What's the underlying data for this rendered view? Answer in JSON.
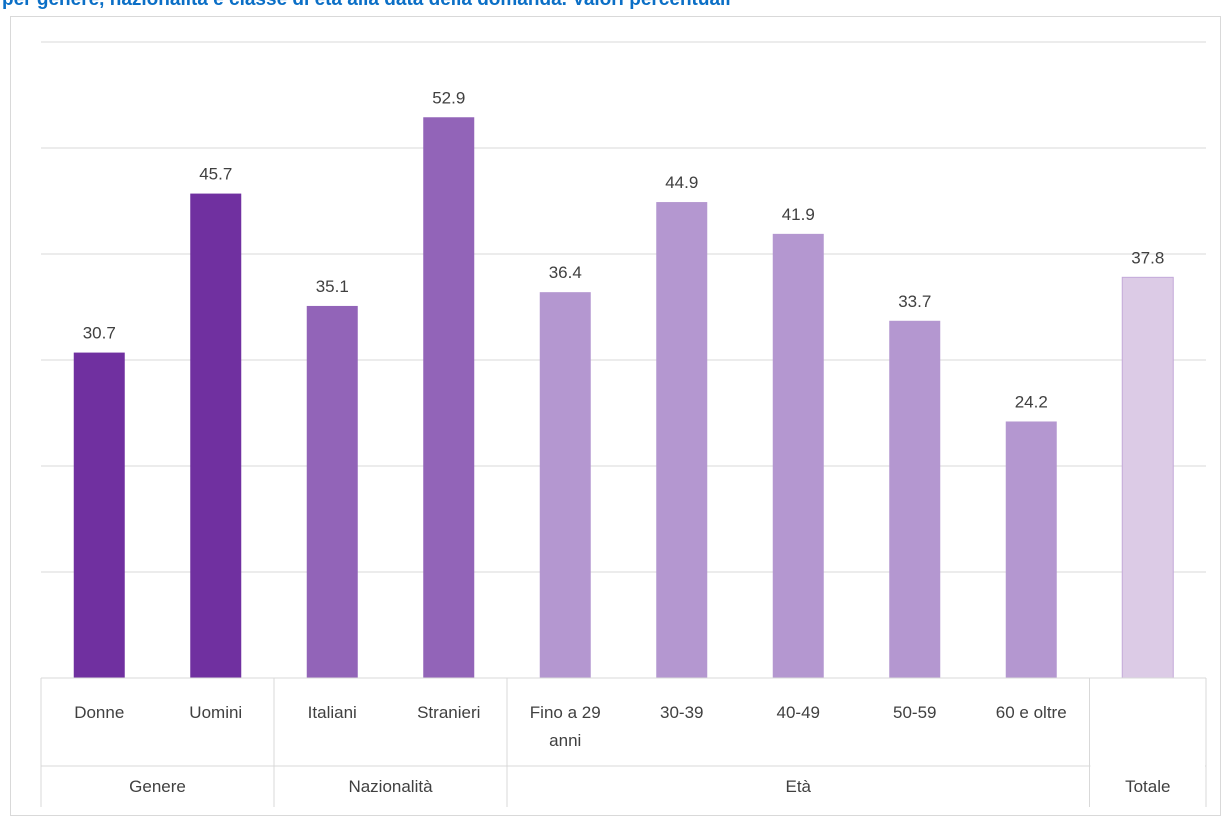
{
  "title": "per genere, nazionalità e classe di età alla data della domanda. Valori percentuali",
  "chart_data": {
    "type": "bar",
    "categories": [
      "Donne",
      "Uomini",
      "Italiani",
      "Stranieri",
      "Fino a 29 anni",
      "30-39",
      "40-49",
      "50-59",
      "60 e oltre",
      ""
    ],
    "values": [
      30.7,
      45.7,
      35.1,
      52.9,
      36.4,
      44.9,
      41.9,
      33.7,
      24.2,
      37.8
    ],
    "value_labels": [
      "30.7",
      "45.7",
      "35.1",
      "52.9",
      "36.4",
      "44.9",
      "41.9",
      "33.7",
      "24.2",
      "37.8"
    ],
    "groups": [
      {
        "name": "Genere",
        "count": 2,
        "color": "#7030a0"
      },
      {
        "name": "Nazionalità",
        "count": 2,
        "color": "#9264b8"
      },
      {
        "name": "Età",
        "count": 5,
        "color": "#b497d0"
      },
      {
        "name": "Totale",
        "count": 1,
        "color": "#dccbe6"
      }
    ],
    "ylim": [
      0,
      60
    ],
    "gridlines": true,
    "y_axis_labels_shown": false,
    "legend": "none"
  }
}
